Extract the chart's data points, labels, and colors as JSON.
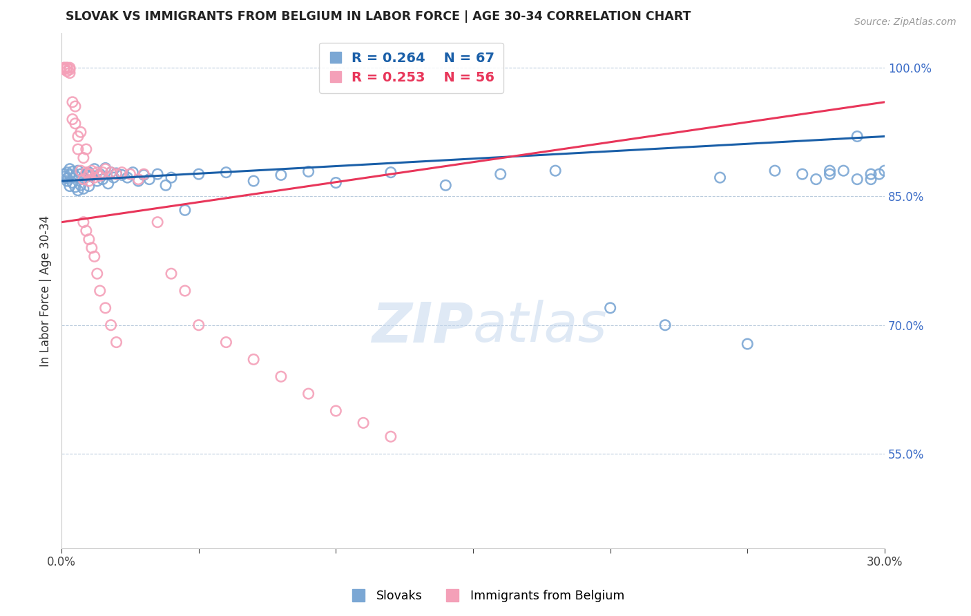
{
  "title": "SLOVAK VS IMMIGRANTS FROM BELGIUM IN LABOR FORCE | AGE 30-34 CORRELATION CHART",
  "source": "Source: ZipAtlas.com",
  "ylabel": "In Labor Force | Age 30-34",
  "xlim": [
    0.0,
    0.3
  ],
  "ylim": [
    0.44,
    1.04
  ],
  "xticks": [
    0.0,
    0.05,
    0.1,
    0.15,
    0.2,
    0.25,
    0.3
  ],
  "xticklabels": [
    "0.0%",
    "",
    "",
    "",
    "",
    "",
    "30.0%"
  ],
  "right_yticks": [
    0.55,
    0.7,
    0.85,
    1.0
  ],
  "right_yticklabels": [
    "55.0%",
    "70.0%",
    "85.0%",
    "100.0%"
  ],
  "blue_color": "#7BA7D4",
  "pink_color": "#F4A0B8",
  "blue_line_color": "#1A5FA8",
  "pink_line_color": "#E8365A",
  "watermark_color": "#C5D8EE",
  "blue_scatter_x": [
    0.001,
    0.001,
    0.002,
    0.002,
    0.002,
    0.003,
    0.003,
    0.003,
    0.004,
    0.004,
    0.005,
    0.005,
    0.006,
    0.006,
    0.007,
    0.007,
    0.008,
    0.008,
    0.009,
    0.01,
    0.01,
    0.011,
    0.012,
    0.013,
    0.014,
    0.015,
    0.016,
    0.017,
    0.018,
    0.019,
    0.02,
    0.022,
    0.024,
    0.026,
    0.028,
    0.03,
    0.032,
    0.035,
    0.038,
    0.04,
    0.045,
    0.05,
    0.06,
    0.07,
    0.08,
    0.09,
    0.1,
    0.12,
    0.14,
    0.16,
    0.18,
    0.2,
    0.22,
    0.24,
    0.25,
    0.26,
    0.27,
    0.28,
    0.29,
    0.295,
    0.298,
    0.3,
    0.295,
    0.29,
    0.285,
    0.28,
    0.275
  ],
  "blue_scatter_y": [
    0.876,
    0.873,
    0.878,
    0.871,
    0.868,
    0.882,
    0.875,
    0.862,
    0.879,
    0.866,
    0.874,
    0.861,
    0.88,
    0.857,
    0.876,
    0.863,
    0.872,
    0.859,
    0.875,
    0.878,
    0.862,
    0.874,
    0.882,
    0.868,
    0.876,
    0.87,
    0.883,
    0.865,
    0.878,
    0.872,
    0.877,
    0.875,
    0.872,
    0.878,
    0.868,
    0.875,
    0.87,
    0.876,
    0.863,
    0.872,
    0.834,
    0.876,
    0.878,
    0.868,
    0.875,
    0.879,
    0.866,
    0.878,
    0.863,
    0.876,
    0.88,
    0.72,
    0.7,
    0.872,
    0.678,
    0.88,
    0.876,
    0.88,
    0.92,
    0.87,
    0.876,
    0.88,
    0.876,
    0.87,
    0.88,
    0.876,
    0.87
  ],
  "pink_scatter_x": [
    0.001,
    0.001,
    0.001,
    0.002,
    0.002,
    0.002,
    0.003,
    0.003,
    0.003,
    0.004,
    0.004,
    0.005,
    0.005,
    0.006,
    0.006,
    0.007,
    0.007,
    0.008,
    0.008,
    0.009,
    0.009,
    0.01,
    0.01,
    0.011,
    0.012,
    0.013,
    0.014,
    0.015,
    0.016,
    0.018,
    0.02,
    0.022,
    0.025,
    0.028,
    0.03,
    0.035,
    0.04,
    0.045,
    0.05,
    0.06,
    0.07,
    0.08,
    0.09,
    0.1,
    0.11,
    0.12,
    0.008,
    0.009,
    0.01,
    0.011,
    0.012,
    0.013,
    0.014,
    0.016,
    0.018,
    0.02
  ],
  "pink_scatter_y": [
    1.0,
    1.0,
    0.998,
    1.0,
    1.0,
    0.996,
    1.0,
    0.998,
    0.994,
    0.96,
    0.94,
    0.955,
    0.935,
    0.92,
    0.905,
    0.925,
    0.88,
    0.895,
    0.87,
    0.905,
    0.878,
    0.876,
    0.868,
    0.88,
    0.872,
    0.878,
    0.874,
    0.878,
    0.882,
    0.878,
    0.876,
    0.878,
    0.876,
    0.87,
    0.876,
    0.82,
    0.76,
    0.74,
    0.7,
    0.68,
    0.66,
    0.64,
    0.62,
    0.6,
    0.586,
    0.57,
    0.82,
    0.81,
    0.8,
    0.79,
    0.78,
    0.76,
    0.74,
    0.72,
    0.7,
    0.68
  ]
}
